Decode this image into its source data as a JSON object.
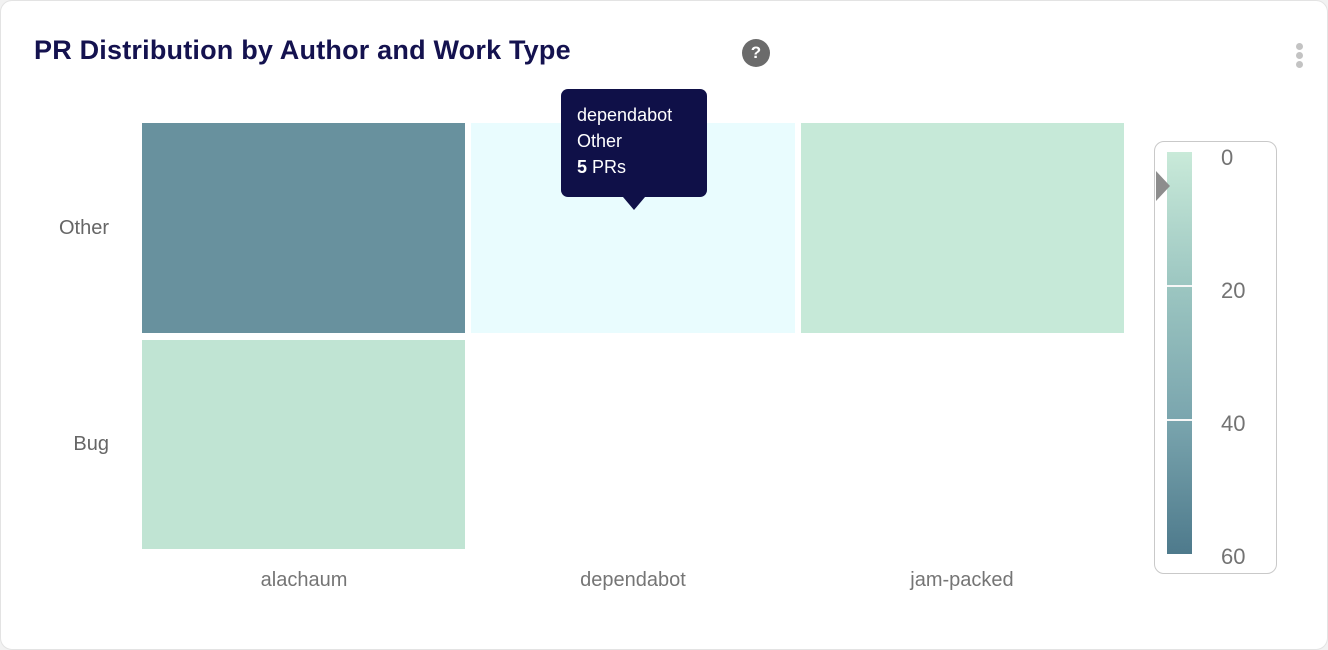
{
  "header": {
    "title": "PR Distribution by Author and Work Type",
    "help_icon": "?"
  },
  "heatmap": {
    "rows": [
      "Other",
      "Bug"
    ],
    "columns": [
      "alachaum",
      "dependabot",
      "jam-packed"
    ],
    "cells": [
      {
        "row": "Other",
        "col": "alachaum",
        "row_index": 0,
        "col_index": 0,
        "color": "#68919e",
        "value": 49,
        "hovered": false
      },
      {
        "row": "Other",
        "col": "dependabot",
        "row_index": 0,
        "col_index": 1,
        "color": "#e9fcfe",
        "value": 5,
        "hovered": true
      },
      {
        "row": "Other",
        "col": "jam-packed",
        "row_index": 0,
        "col_index": 2,
        "color": "#c6e9d8",
        "value": 6,
        "hovered": false
      },
      {
        "row": "Bug",
        "col": "alachaum",
        "row_index": 1,
        "col_index": 0,
        "color": "#c0e4d3",
        "value": 8,
        "hovered": false
      }
    ]
  },
  "tooltip": {
    "author": "dependabot",
    "work_type": "Other",
    "value": "5",
    "unit": " PRs",
    "bg_color": "#0f1048"
  },
  "legend": {
    "ticks": [
      "0",
      "20",
      "40",
      "60"
    ],
    "min": 0,
    "max": 60,
    "pointer_value": 5,
    "gradient": [
      "#c9ead9",
      "#9cc6c1",
      "#7aa5ae",
      "#4e7a8c"
    ]
  },
  "chart_data": {
    "type": "heatmap",
    "title": "PR Distribution by Author and Work Type",
    "x_categories": [
      "alachaum",
      "dependabot",
      "jam-packed"
    ],
    "y_categories": [
      "Other",
      "Bug"
    ],
    "values_unit": "PRs",
    "series": [
      {
        "name": "Other",
        "values": [
          49,
          5,
          6
        ]
      },
      {
        "name": "Bug",
        "values": [
          8,
          null,
          null
        ]
      }
    ],
    "color_scale": {
      "min": 0,
      "max": 60,
      "ticks": [
        0,
        20,
        40,
        60
      ],
      "low_color": "#c9ead9",
      "high_color": "#4e7a8c"
    },
    "highlighted_cell": {
      "x": "dependabot",
      "y": "Other",
      "value": 5,
      "highlight_color": "#e9fcfe"
    },
    "legend_position": "right",
    "grid": false
  }
}
